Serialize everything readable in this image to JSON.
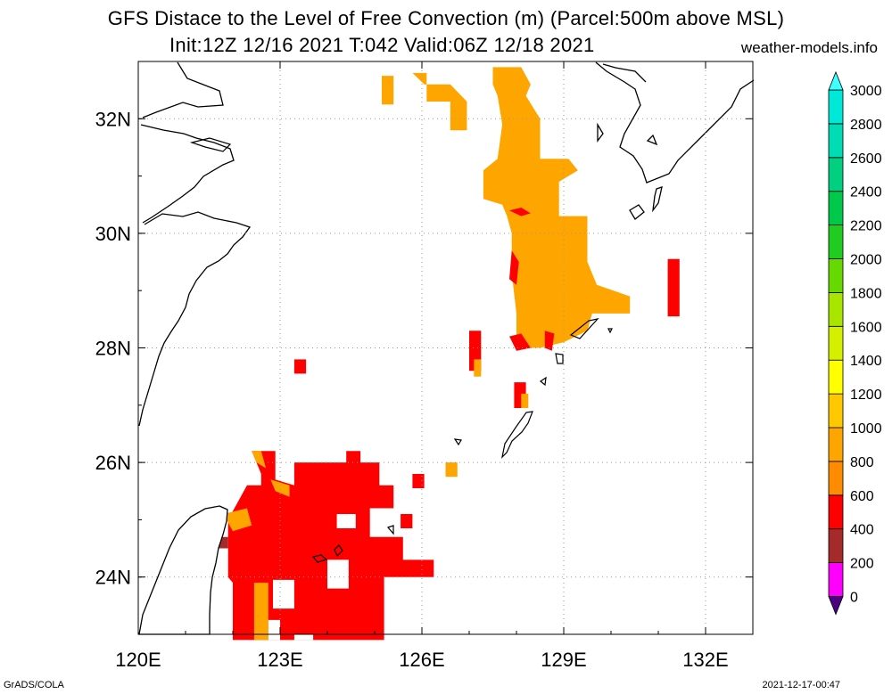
{
  "header": {
    "title_line1": "GFS Distace to the Level of Free Convection (m) (Parcel:500m above MSL)",
    "title_line2": "Init:12Z 12/16 2021 T:042 Valid:06Z 12/18 2021",
    "site": "weather-models.info"
  },
  "footer": {
    "left": "GrADS/COLA",
    "right": "2021-12-17-00:47"
  },
  "map": {
    "lon_range": [
      120,
      133
    ],
    "lat_range": [
      23,
      33
    ],
    "lon_ticks": [
      120,
      123,
      126,
      129,
      132
    ],
    "lat_ticks": [
      24,
      26,
      28,
      30,
      32
    ],
    "lon_labels": [
      "120E",
      "123E",
      "126E",
      "129E",
      "132E"
    ],
    "lat_labels": [
      "24N",
      "26N",
      "28N",
      "30N",
      "32N"
    ],
    "grid": true
  },
  "colorbar": {
    "levels": [
      0,
      200,
      400,
      600,
      800,
      1000,
      1200,
      1400,
      1600,
      1800,
      2000,
      2200,
      2400,
      2600,
      2800,
      3000
    ],
    "labels": [
      "0",
      "200",
      "400",
      "600",
      "800",
      "1000",
      "1200",
      "1400",
      "1600",
      "1800",
      "2000",
      "2200",
      "2400",
      "2600",
      "2800",
      "3000"
    ],
    "colors": [
      "#4b0082",
      "#ff00ff",
      "#a52a2a",
      "#ff0000",
      "#ff8c00",
      "#ffa500",
      "#ffc800",
      "#ffff00",
      "#d4f000",
      "#a8e600",
      "#66d900",
      "#20cc20",
      "#00c84a",
      "#00d080",
      "#00dcb4",
      "#00e8d8",
      "#40ffff"
    ]
  },
  "fields": [
    {
      "color": "#ff0000",
      "points": [
        [
          127.9,
          32.6
        ],
        [
          128.1,
          32.3
        ],
        [
          128.3,
          31.8
        ],
        [
          128.4,
          31.4
        ],
        [
          128.2,
          31.3
        ],
        [
          127.9,
          31.7
        ],
        [
          127.7,
          32.2
        ],
        [
          127.7,
          32.6
        ]
      ]
    },
    {
      "color": "#ffa500",
      "points": [
        [
          127.5,
          32.9
        ],
        [
          128.1,
          32.9
        ],
        [
          128.3,
          32.6
        ],
        [
          128.2,
          32.4
        ],
        [
          128.5,
          32.0
        ],
        [
          128.5,
          31.3
        ],
        [
          129.1,
          31.3
        ],
        [
          129.3,
          31.1
        ],
        [
          128.9,
          30.9
        ],
        [
          128.9,
          30.3
        ],
        [
          129.5,
          30.3
        ],
        [
          129.5,
          29.5
        ],
        [
          129.7,
          29.1
        ],
        [
          130.4,
          28.9
        ],
        [
          130.4,
          28.6
        ],
        [
          129.6,
          28.6
        ],
        [
          129.5,
          28.3
        ],
        [
          129.0,
          28.1
        ],
        [
          128.5,
          28.0
        ],
        [
          128.0,
          28.0
        ],
        [
          128.0,
          28.6
        ],
        [
          127.9,
          29.3
        ],
        [
          127.9,
          30.0
        ],
        [
          127.8,
          30.3
        ],
        [
          127.7,
          30.5
        ],
        [
          127.3,
          30.6
        ],
        [
          127.3,
          31.1
        ],
        [
          127.6,
          31.3
        ],
        [
          127.7,
          31.9
        ],
        [
          127.6,
          32.4
        ],
        [
          127.5,
          32.6
        ]
      ]
    },
    {
      "color": "#ff0000",
      "points": [
        [
          127.85,
          30.4
        ],
        [
          128.1,
          30.3
        ],
        [
          128.3,
          30.35
        ],
        [
          128.1,
          30.45
        ]
      ]
    },
    {
      "color": "#ff0000",
      "points": [
        [
          127.85,
          29.2
        ],
        [
          127.9,
          29.7
        ],
        [
          128.05,
          29.5
        ],
        [
          128.0,
          29.1
        ]
      ]
    },
    {
      "color": "#ff0000",
      "points": [
        [
          127.85,
          28.2
        ],
        [
          128.1,
          28.25
        ],
        [
          128.3,
          28.0
        ],
        [
          128.0,
          27.95
        ]
      ]
    },
    {
      "color": "#ff0000",
      "points": [
        [
          128.6,
          28.3
        ],
        [
          128.8,
          28.25
        ],
        [
          128.75,
          27.95
        ],
        [
          128.6,
          28.0
        ]
      ]
    },
    {
      "color": "#ff0000",
      "points": [
        [
          131.2,
          29.55
        ],
        [
          131.45,
          29.55
        ],
        [
          131.45,
          28.55
        ],
        [
          131.2,
          28.55
        ]
      ]
    },
    {
      "color": "#ffa500",
      "points": [
        [
          125.8,
          32.8
        ],
        [
          126.1,
          32.8
        ],
        [
          126.1,
          32.3
        ],
        [
          126.6,
          32.3
        ],
        [
          126.6,
          31.8
        ],
        [
          126.95,
          31.8
        ],
        [
          126.95,
          32.3
        ],
        [
          126.6,
          32.6
        ],
        [
          126.3,
          32.6
        ],
        [
          126.05,
          32.6
        ]
      ]
    },
    {
      "color": "#ffa500",
      "points": [
        [
          125.15,
          32.75
        ],
        [
          125.4,
          32.75
        ],
        [
          125.4,
          32.25
        ],
        [
          125.15,
          32.25
        ]
      ]
    },
    {
      "color": "#ff0000",
      "points": [
        [
          127.0,
          28.3
        ],
        [
          127.25,
          28.3
        ],
        [
          127.25,
          27.6
        ],
        [
          127.0,
          27.6
        ]
      ]
    },
    {
      "color": "#ff0000",
      "points": [
        [
          127.95,
          27.4
        ],
        [
          128.2,
          27.4
        ],
        [
          128.2,
          26.95
        ],
        [
          127.95,
          26.95
        ]
      ]
    },
    {
      "color": "#ffa500",
      "points": [
        [
          126.5,
          26.0
        ],
        [
          126.75,
          26.0
        ],
        [
          126.75,
          25.75
        ],
        [
          126.5,
          25.75
        ]
      ]
    },
    {
      "color": "#ff0000",
      "points": [
        [
          123.3,
          27.8
        ],
        [
          123.55,
          27.8
        ],
        [
          123.55,
          27.55
        ],
        [
          123.3,
          27.55
        ]
      ]
    },
    {
      "color": "#ff0000",
      "points": [
        [
          125.8,
          25.8
        ],
        [
          126.05,
          25.8
        ],
        [
          126.05,
          25.55
        ],
        [
          125.8,
          25.55
        ]
      ]
    },
    {
      "color": "#ff0000",
      "points": [
        [
          125.55,
          25.1
        ],
        [
          125.8,
          25.1
        ],
        [
          125.8,
          24.85
        ],
        [
          125.55,
          24.85
        ]
      ]
    },
    {
      "color": "#ff0000",
      "points": [
        [
          122.4,
          26.2
        ],
        [
          122.9,
          26.2
        ],
        [
          122.9,
          25.7
        ],
        [
          123.3,
          25.6
        ],
        [
          123.3,
          26.0
        ],
        [
          124.4,
          26.0
        ],
        [
          124.4,
          26.2
        ],
        [
          124.7,
          26.2
        ],
        [
          124.7,
          26.0
        ],
        [
          125.1,
          26.0
        ],
        [
          125.1,
          25.6
        ],
        [
          125.4,
          25.6
        ],
        [
          125.4,
          25.2
        ],
        [
          124.9,
          25.2
        ],
        [
          124.9,
          24.7
        ],
        [
          125.6,
          24.7
        ],
        [
          125.6,
          24.3
        ],
        [
          126.25,
          24.3
        ],
        [
          126.25,
          24.0
        ],
        [
          125.2,
          24.0
        ],
        [
          125.2,
          22.9
        ],
        [
          122.0,
          22.9
        ],
        [
          122.0,
          23.9
        ],
        [
          121.9,
          24.0
        ],
        [
          121.9,
          24.4
        ],
        [
          121.9,
          25.0
        ],
        [
          122.1,
          25.3
        ],
        [
          122.3,
          25.6
        ],
        [
          122.6,
          25.6
        ],
        [
          122.6,
          25.8
        ]
      ]
    },
    {
      "color": "#a52a2a",
      "points": [
        [
          121.5,
          24.7
        ],
        [
          121.9,
          24.7
        ],
        [
          121.9,
          24.5
        ],
        [
          121.5,
          24.5
        ]
      ]
    },
    {
      "color": "#ffa500",
      "points": [
        [
          121.8,
          25.1
        ],
        [
          122.3,
          25.2
        ],
        [
          122.4,
          24.9
        ],
        [
          122.0,
          24.8
        ]
      ]
    },
    {
      "color": "#ffa500",
      "points": [
        [
          122.4,
          26.2
        ],
        [
          122.6,
          26.2
        ],
        [
          122.7,
          25.9
        ],
        [
          122.5,
          26.0
        ]
      ]
    },
    {
      "color": "#ffa500",
      "points": [
        [
          122.8,
          25.7
        ],
        [
          123.2,
          25.6
        ],
        [
          123.2,
          25.4
        ],
        [
          122.9,
          25.5
        ]
      ]
    },
    {
      "color": "#ffa500",
      "points": [
        [
          122.45,
          23.9
        ],
        [
          122.75,
          23.9
        ],
        [
          122.75,
          22.9
        ],
        [
          122.45,
          22.9
        ]
      ]
    },
    {
      "color": "#ffa500",
      "points": [
        [
          127.1,
          27.8
        ],
        [
          127.25,
          27.8
        ],
        [
          127.25,
          27.5
        ],
        [
          127.1,
          27.5
        ]
      ]
    },
    {
      "color": "#ffa500",
      "points": [
        [
          128.1,
          27.2
        ],
        [
          128.25,
          27.2
        ],
        [
          128.25,
          26.95
        ],
        [
          128.1,
          26.95
        ]
      ]
    },
    {
      "color": "#ffffff",
      "points": [
        [
          122.85,
          23.95
        ],
        [
          123.3,
          23.95
        ],
        [
          123.3,
          23.45
        ],
        [
          122.85,
          23.45
        ]
      ]
    },
    {
      "color": "#ffffff",
      "points": [
        [
          124.0,
          24.3
        ],
        [
          124.45,
          24.3
        ],
        [
          124.45,
          23.8
        ],
        [
          124.0,
          23.8
        ]
      ]
    },
    {
      "color": "#ffffff",
      "points": [
        [
          122.75,
          23.25
        ],
        [
          123.0,
          23.25
        ],
        [
          123.0,
          22.9
        ],
        [
          122.75,
          22.9
        ]
      ]
    },
    {
      "color": "#ffffff",
      "points": [
        [
          123.3,
          23.0
        ],
        [
          123.7,
          23.0
        ],
        [
          123.7,
          22.9
        ],
        [
          123.3,
          22.9
        ]
      ]
    },
    {
      "color": "#ffffff",
      "points": [
        [
          124.2,
          25.1
        ],
        [
          124.6,
          25.1
        ],
        [
          124.6,
          24.85
        ],
        [
          124.2,
          24.85
        ]
      ]
    }
  ]
}
